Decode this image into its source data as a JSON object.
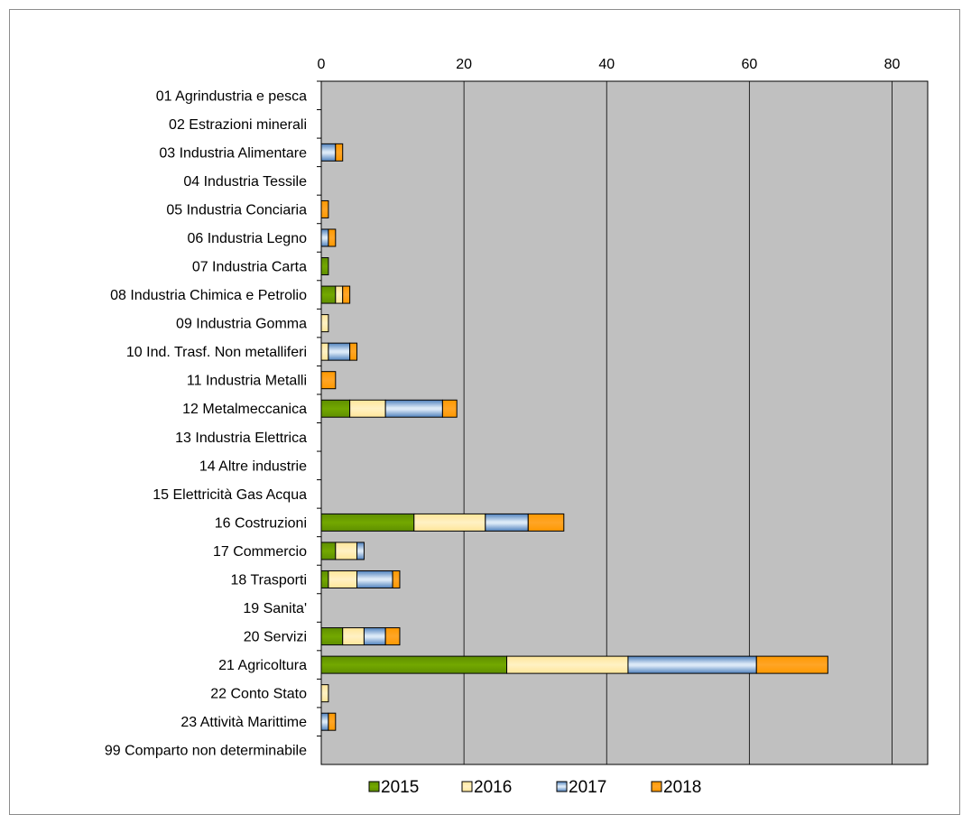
{
  "chart_data": {
    "type": "bar",
    "orientation": "horizontal",
    "stacked": true,
    "title": "",
    "xlabel": "",
    "ylabel": "",
    "xlim": [
      0,
      85
    ],
    "x_ticks": [
      0,
      20,
      40,
      60,
      80
    ],
    "grid": true,
    "plot_background": "#c0c0c0",
    "legend_position": "bottom",
    "categories": [
      "01 Agrindustria e pesca",
      "02 Estrazioni minerali",
      "03 Industria Alimentare",
      "04 Industria Tessile",
      "05 Industria Conciaria",
      "06 Industria Legno",
      "07 Industria Carta",
      "08 Industria Chimica e Petrolio",
      "09 Industria Gomma",
      "10 Ind. Trasf. Non metalliferi",
      "11 Industria Metalli",
      "12 Metalmeccanica",
      "13 Industria Elettrica",
      "14 Altre industrie",
      "15 Elettricità Gas Acqua",
      "16 Costruzioni",
      "17 Commercio",
      "18 Trasporti",
      "19 Sanita'",
      "20 Servizi",
      "21 Agricoltura",
      "22 Conto Stato",
      "23 Attività Marittime",
      "99 Comparto non determinabile"
    ],
    "series": [
      {
        "name": "2015",
        "color": "#669900",
        "values": [
          0,
          0,
          0,
          0,
          0,
          0,
          1,
          2,
          0,
          0,
          0,
          4,
          0,
          0,
          0,
          13,
          2,
          1,
          0,
          3,
          26,
          0,
          0,
          0
        ]
      },
      {
        "name": "2016",
        "color": "#ffe699",
        "values": [
          0,
          0,
          0,
          0,
          0,
          0,
          0,
          1,
          1,
          1,
          0,
          5,
          0,
          0,
          0,
          10,
          3,
          4,
          0,
          3,
          17,
          1,
          0,
          0
        ]
      },
      {
        "name": "2017",
        "color": "#5b9bd5",
        "values": [
          0,
          0,
          2,
          0,
          0,
          1,
          0,
          0,
          0,
          3,
          0,
          8,
          0,
          0,
          0,
          6,
          1,
          5,
          0,
          3,
          18,
          0,
          1,
          0
        ]
      },
      {
        "name": "2018",
        "color": "#ff9900",
        "values": [
          0,
          0,
          1,
          0,
          1,
          1,
          0,
          1,
          0,
          1,
          2,
          2,
          0,
          0,
          0,
          5,
          0,
          1,
          0,
          2,
          10,
          0,
          1,
          0
        ]
      }
    ]
  }
}
